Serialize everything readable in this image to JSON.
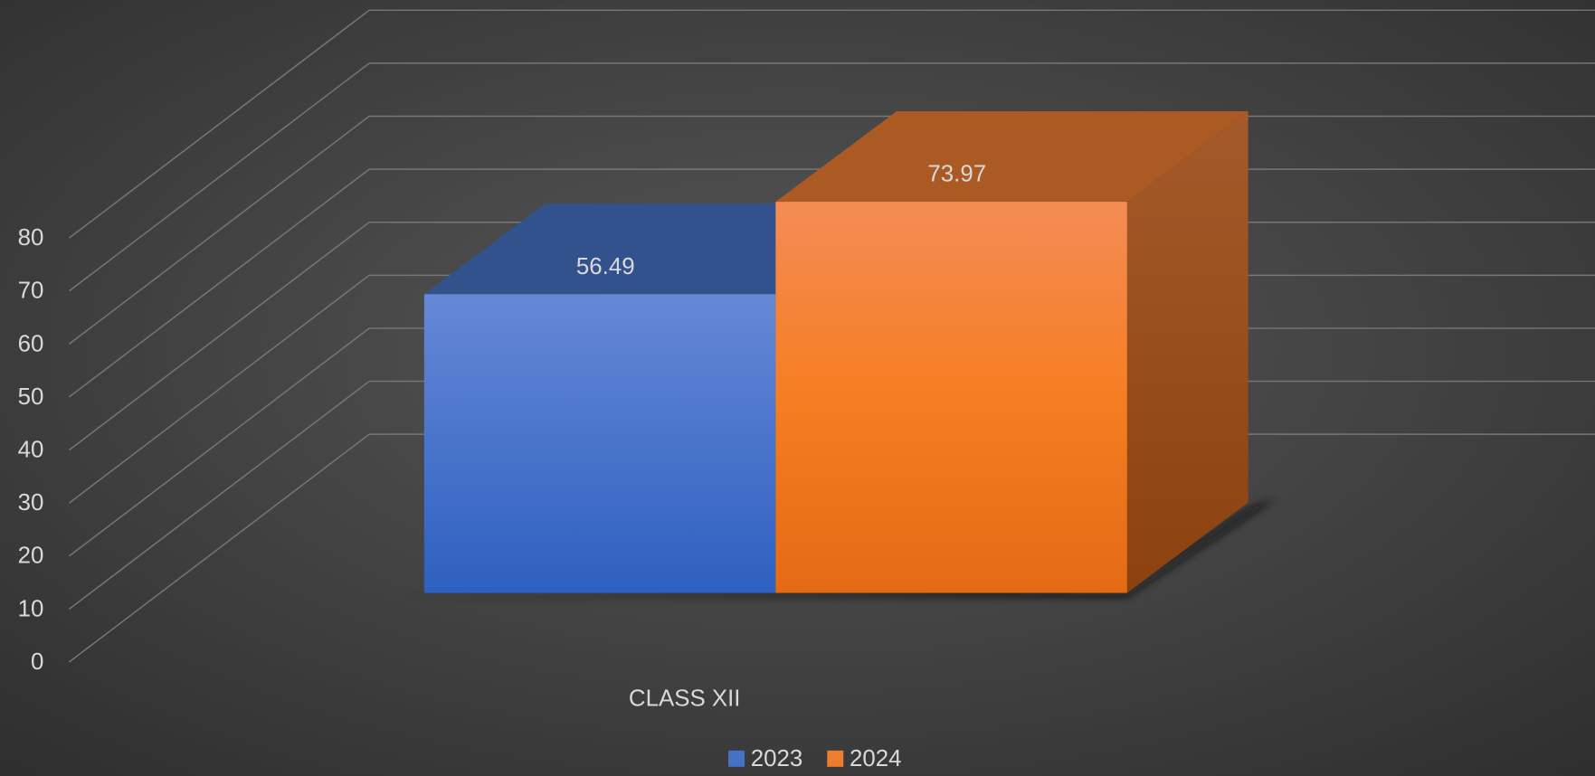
{
  "chart_data": {
    "type": "bar3d",
    "categories": [
      "CLASS XII"
    ],
    "series": [
      {
        "name": "2023",
        "color": "#4472c4",
        "values": [
          56.49
        ]
      },
      {
        "name": "2024",
        "color": "#ed7d31",
        "values": [
          73.97
        ]
      }
    ],
    "ylim": [
      0,
      80
    ],
    "yticks": [
      0,
      10,
      20,
      30,
      40,
      50,
      60,
      70,
      80
    ],
    "grid": true,
    "legend": "bottom"
  }
}
